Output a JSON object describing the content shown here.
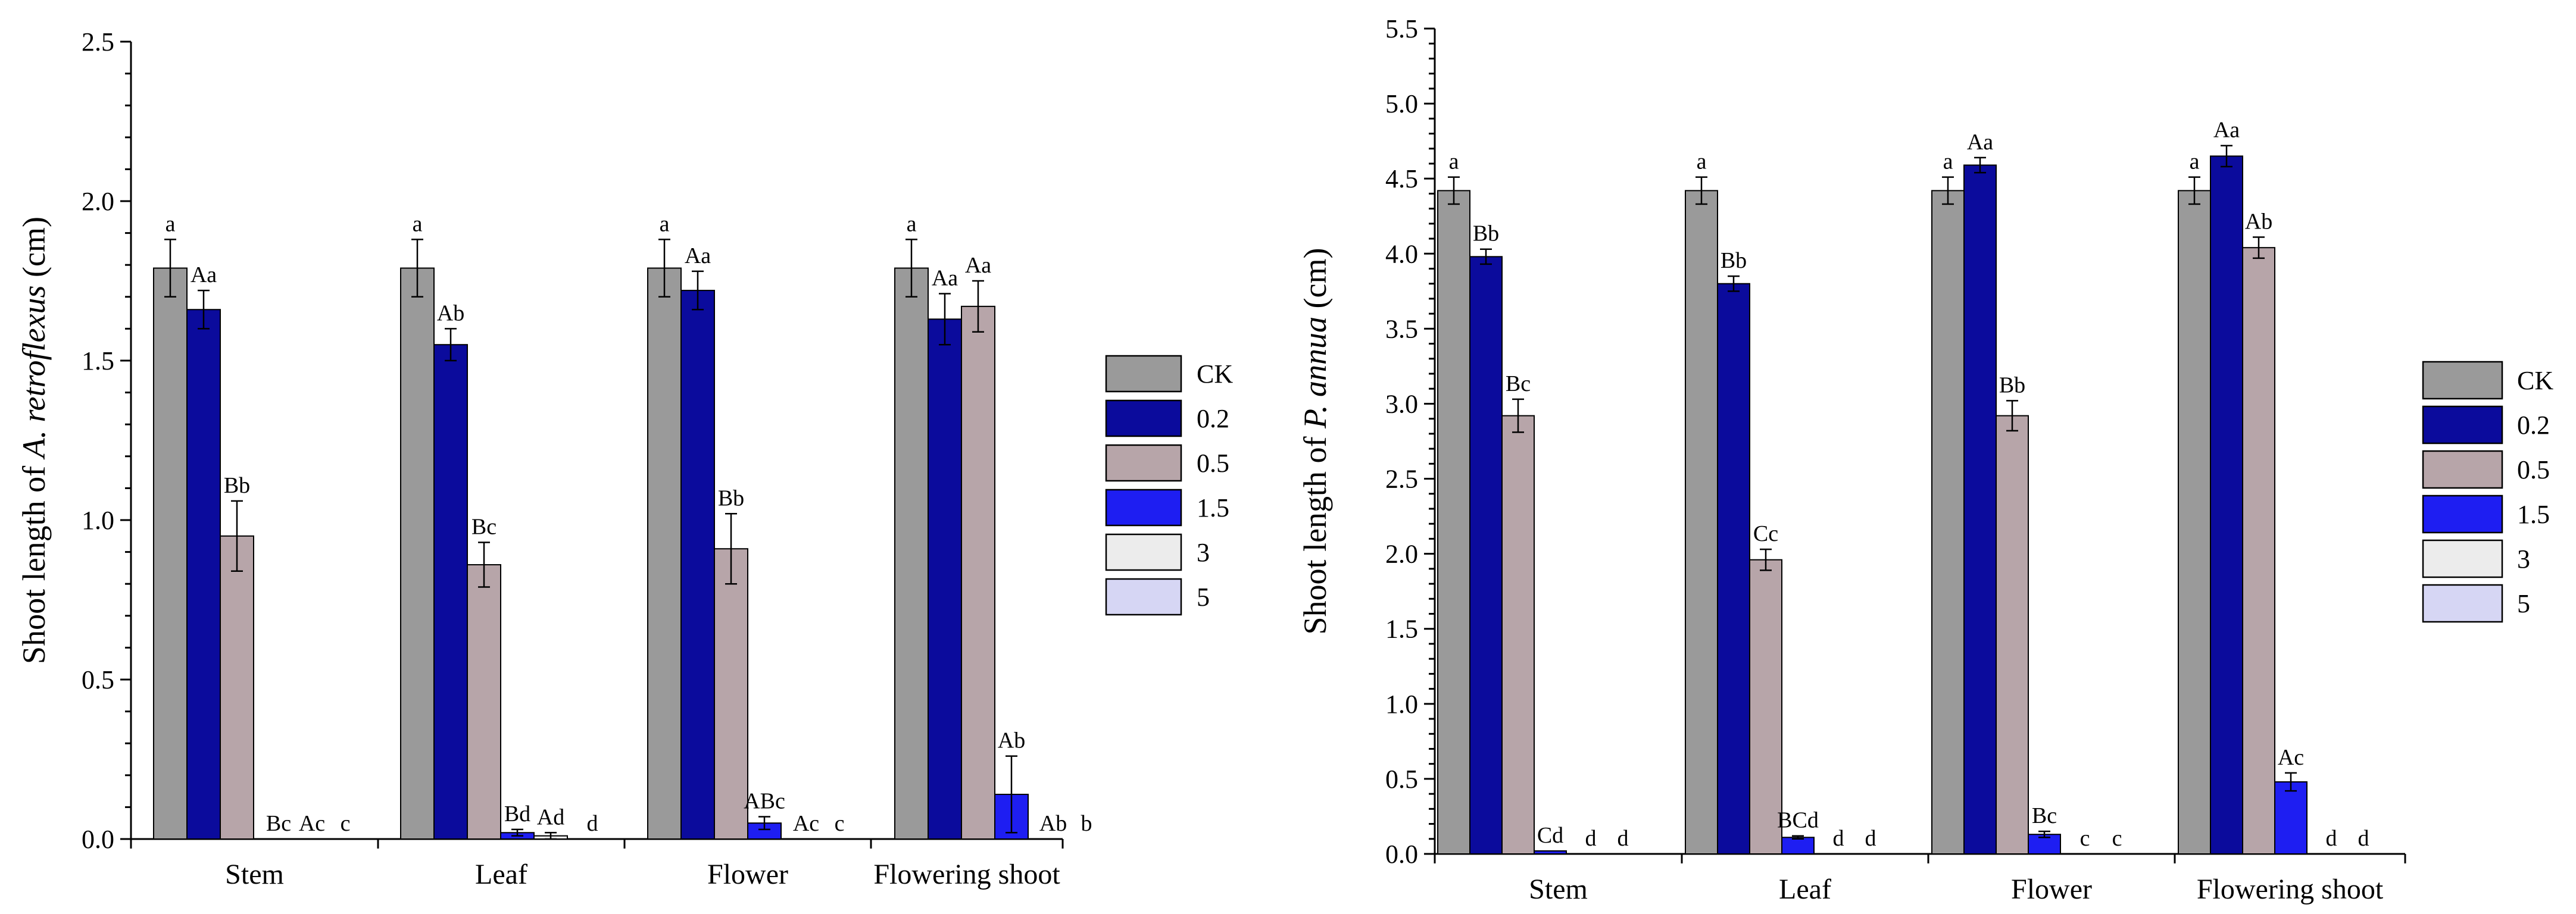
{
  "chart_data": [
    {
      "type": "bar",
      "ylabel_prefix": "Shoot length of ",
      "ylabel_species": "A. retroflexus",
      "ylabel_suffix": " (cm)",
      "ylim": [
        0,
        2.5
      ],
      "yticks": [
        "0.0",
        "0.5",
        "1.0",
        "1.5",
        "2.0",
        "2.5"
      ],
      "categories": [
        "Stem",
        "Leaf",
        "Flower",
        "Flowering shoot"
      ],
      "series": [
        {
          "name": "CK",
          "color": "#9a9a9a",
          "values": [
            1.79,
            1.79,
            1.79,
            1.79
          ],
          "errors": [
            0.09,
            0.09,
            0.09,
            0.09
          ],
          "labels": [
            "a",
            "a",
            "a",
            "a"
          ]
        },
        {
          "name": "0.2",
          "color": "#0b0b9c",
          "values": [
            1.66,
            1.55,
            1.72,
            1.63
          ],
          "errors": [
            0.06,
            0.05,
            0.06,
            0.08
          ],
          "labels": [
            "Aa",
            "Ab",
            "Aa",
            "Aa"
          ]
        },
        {
          "name": "0.5",
          "color": "#b7a5a9",
          "values": [
            0.95,
            0.86,
            0.91,
            1.67
          ],
          "errors": [
            0.11,
            0.07,
            0.11,
            0.08
          ],
          "labels": [
            "Bb",
            "Bc",
            "Bb",
            "Aa"
          ]
        },
        {
          "name": "1.5",
          "color": "#1e1ef2",
          "values": [
            0,
            0.02,
            0.05,
            0.14
          ],
          "errors": [
            0,
            0.01,
            0.02,
            0.12
          ],
          "labels": [
            "Bc",
            "Bd",
            "ABc",
            "Ab"
          ]
        },
        {
          "name": "3",
          "color": "#ececec",
          "values": [
            0,
            0.01,
            0,
            0
          ],
          "errors": [
            0,
            0.01,
            0,
            0
          ],
          "labels": [
            "Ac",
            "Ad",
            "Ac",
            "Ab"
          ]
        },
        {
          "name": "5",
          "color": "#d6d6f4",
          "values": [
            0,
            0,
            0,
            0
          ],
          "errors": [
            0,
            0,
            0,
            0
          ],
          "labels": [
            "c",
            "d",
            "c",
            "b"
          ]
        }
      ]
    },
    {
      "type": "bar",
      "ylabel_prefix": "Shoot length of ",
      "ylabel_species": "P. annua",
      "ylabel_suffix": " (cm)",
      "ylim": [
        0,
        5.5
      ],
      "yticks": [
        "0.0",
        "0.5",
        "1.0",
        "1.5",
        "2.0",
        "2.5",
        "3.0",
        "3.5",
        "4.0",
        "4.5",
        "5.0",
        "5.5"
      ],
      "categories": [
        "Stem",
        "Leaf",
        "Flower",
        "Flowering shoot"
      ],
      "series": [
        {
          "name": "CK",
          "color": "#9a9a9a",
          "values": [
            4.42,
            4.42,
            4.42,
            4.42
          ],
          "errors": [
            0.09,
            0.09,
            0.09,
            0.09
          ],
          "labels": [
            "a",
            "a",
            "a",
            "a"
          ]
        },
        {
          "name": "0.2",
          "color": "#0b0b9c",
          "values": [
            3.98,
            3.8,
            4.59,
            4.65
          ],
          "errors": [
            0.05,
            0.05,
            0.05,
            0.07
          ],
          "labels": [
            "Bb",
            "Bb",
            "Aa",
            "Aa"
          ]
        },
        {
          "name": "0.5",
          "color": "#b7a5a9",
          "values": [
            2.92,
            1.96,
            2.92,
            4.04
          ],
          "errors": [
            0.11,
            0.07,
            0.1,
            0.07
          ],
          "labels": [
            "Bc",
            "Cc",
            "Bb",
            "Ab"
          ]
        },
        {
          "name": "1.5",
          "color": "#1e1ef2",
          "values": [
            0.02,
            0.11,
            0.13,
            0.48
          ],
          "errors": [
            0,
            0.01,
            0.02,
            0.06
          ],
          "labels": [
            "Cd",
            "BCd",
            "Bc",
            "Ac"
          ]
        },
        {
          "name": "3",
          "color": "#ececec",
          "values": [
            0,
            0,
            0,
            0
          ],
          "errors": [
            0,
            0,
            0,
            0
          ],
          "labels": [
            "d",
            "d",
            "c",
            "d"
          ]
        },
        {
          "name": "5",
          "color": "#d6d6f4",
          "values": [
            0,
            0,
            0,
            0
          ],
          "errors": [
            0,
            0,
            0,
            0
          ],
          "labels": [
            "d",
            "d",
            "c",
            "d"
          ]
        }
      ]
    }
  ]
}
